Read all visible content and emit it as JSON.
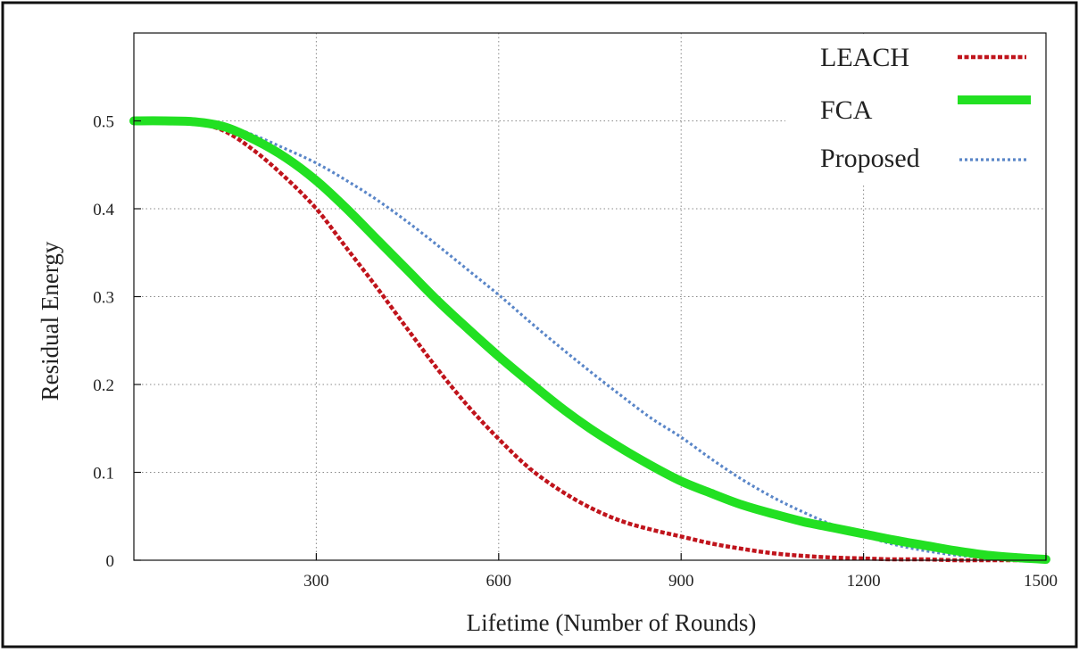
{
  "chart_data": {
    "type": "line",
    "title": "",
    "xlabel": "Lifetime (Number of Rounds)",
    "ylabel": "Residual Energy",
    "xlim": [
      0,
      1500
    ],
    "ylim": [
      0,
      0.6
    ],
    "x_ticks": [
      300,
      600,
      900,
      1200,
      1500
    ],
    "x_tick_labels": [
      "300",
      "600",
      "900",
      "1200",
      "1500"
    ],
    "y_ticks": [
      0,
      0.1,
      0.2,
      0.3,
      0.4,
      0.5
    ],
    "y_tick_labels": [
      "0",
      "0.1",
      "0.2",
      "0.3",
      "0.4",
      "0.5"
    ],
    "grid": true,
    "legend_position": "top-right",
    "series": [
      {
        "name": "LEACH",
        "color": "#c0141c",
        "style": "dashed",
        "x": [
          0,
          50,
          100,
          150,
          200,
          250,
          300,
          350,
          400,
          450,
          500,
          550,
          600,
          650,
          700,
          750,
          800,
          850,
          900,
          950,
          1000,
          1050,
          1100,
          1150,
          1200,
          1250,
          1300,
          1350,
          1400,
          1450,
          1500
        ],
        "values": [
          0.5,
          0.5,
          0.498,
          0.488,
          0.465,
          0.435,
          0.4,
          0.355,
          0.31,
          0.263,
          0.217,
          0.175,
          0.138,
          0.105,
          0.08,
          0.06,
          0.045,
          0.035,
          0.027,
          0.019,
          0.013,
          0.008,
          0.005,
          0.003,
          0.002,
          0.001,
          0.001,
          0.0,
          0.0,
          0.0,
          0.0
        ]
      },
      {
        "name": "FCA",
        "color": "#22e022",
        "style": "solid",
        "x": [
          0,
          50,
          100,
          150,
          200,
          250,
          300,
          350,
          400,
          450,
          500,
          550,
          600,
          650,
          700,
          750,
          800,
          850,
          900,
          950,
          1000,
          1050,
          1100,
          1150,
          1200,
          1250,
          1300,
          1350,
          1400,
          1450,
          1500
        ],
        "values": [
          0.5,
          0.5,
          0.499,
          0.493,
          0.478,
          0.458,
          0.432,
          0.4,
          0.365,
          0.33,
          0.295,
          0.263,
          0.232,
          0.203,
          0.175,
          0.15,
          0.128,
          0.108,
          0.09,
          0.076,
          0.063,
          0.053,
          0.044,
          0.037,
          0.03,
          0.023,
          0.017,
          0.011,
          0.006,
          0.003,
          0.001
        ]
      },
      {
        "name": "Proposed",
        "color": "#5a86c8",
        "style": "dotted",
        "x": [
          0,
          50,
          100,
          150,
          200,
          250,
          300,
          350,
          400,
          450,
          500,
          550,
          600,
          650,
          700,
          750,
          800,
          850,
          900,
          950,
          1000,
          1050,
          1100,
          1150,
          1200,
          1250,
          1300,
          1350,
          1400,
          1450,
          1500
        ],
        "values": [
          0.5,
          0.5,
          0.5,
          0.495,
          0.483,
          0.468,
          0.452,
          0.432,
          0.41,
          0.385,
          0.358,
          0.33,
          0.302,
          0.272,
          0.243,
          0.215,
          0.188,
          0.162,
          0.14,
          0.115,
          0.092,
          0.072,
          0.055,
          0.04,
          0.028,
          0.018,
          0.011,
          0.006,
          0.003,
          0.001,
          0.0
        ]
      }
    ]
  }
}
